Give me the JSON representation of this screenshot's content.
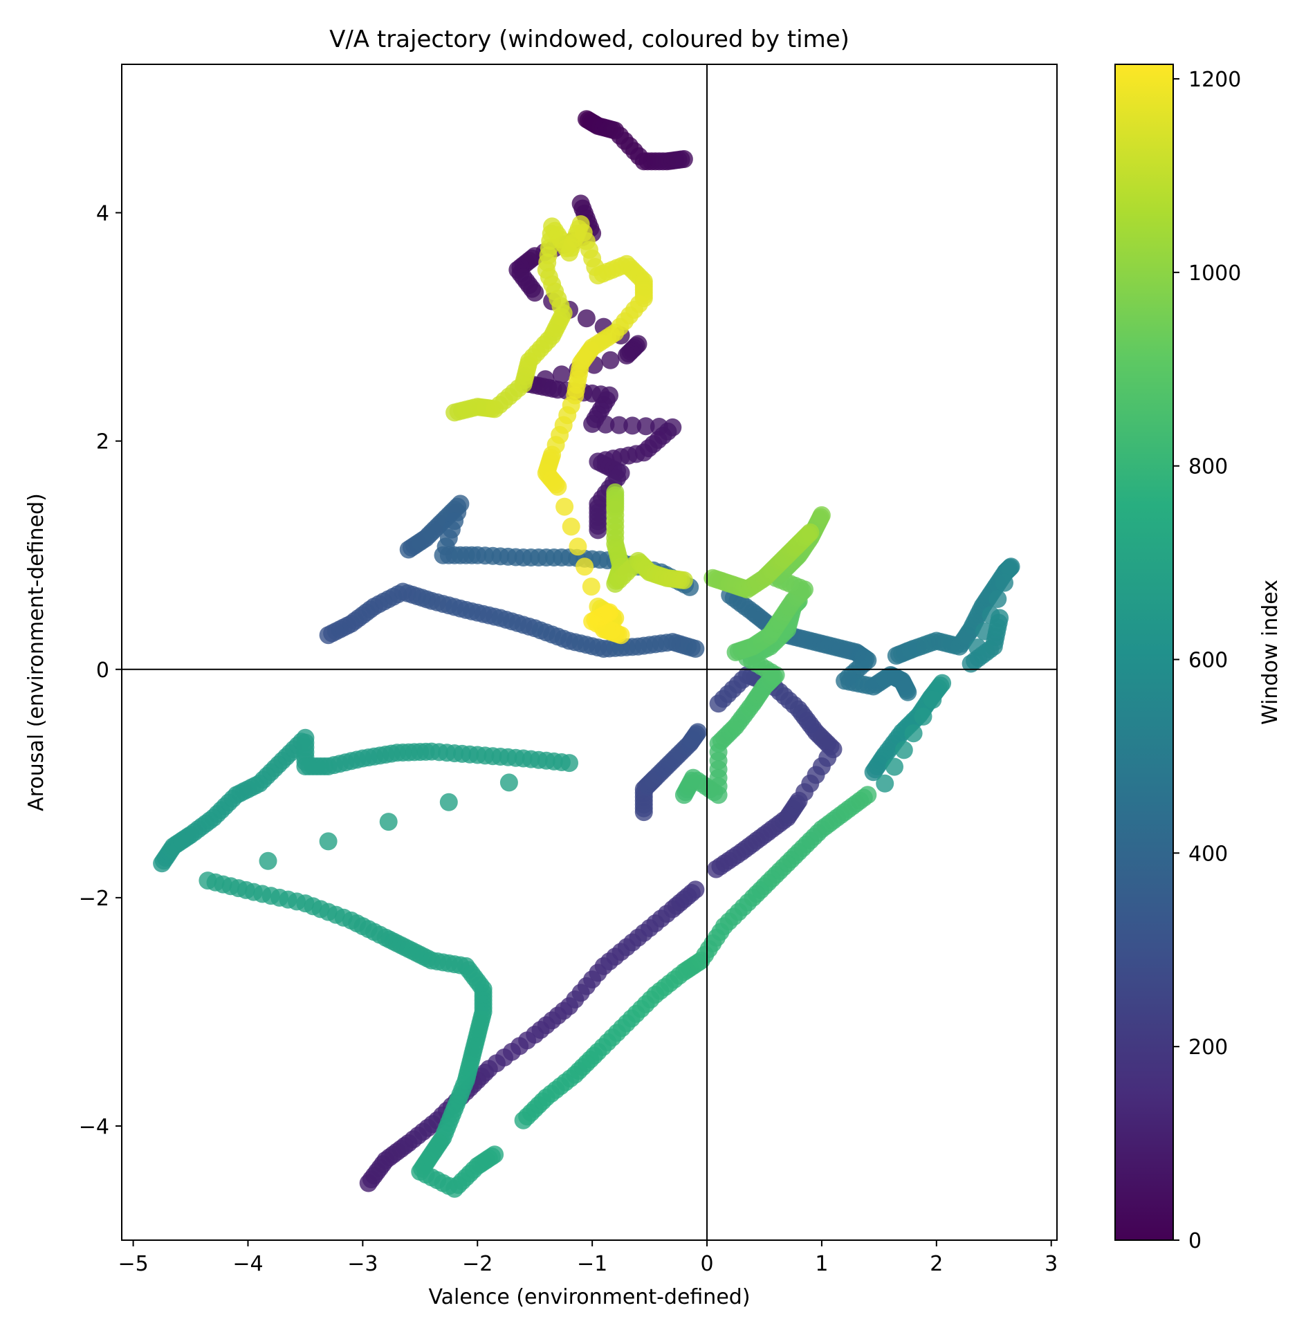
{
  "chart_data": {
    "type": "scatter",
    "title": "V/A trajectory (windowed, coloured by time)",
    "xlabel": "Valence (environment-defined)",
    "ylabel": "Arousal (environment-defined)",
    "xlim": [
      -5.1,
      3.05
    ],
    "ylim": [
      -5.0,
      5.3
    ],
    "xticks": [
      -5,
      -4,
      -3,
      -2,
      -1,
      0,
      1,
      2,
      3
    ],
    "xtick_labels": [
      "−5",
      "−4",
      "−3",
      "−2",
      "−1",
      "0",
      "1",
      "2",
      "3"
    ],
    "yticks": [
      -4,
      -2,
      0,
      2,
      4
    ],
    "ytick_labels": [
      "−4",
      "−2",
      "0",
      "2",
      "4"
    ],
    "reference_lines": {
      "x": 0,
      "y": 0
    },
    "grid": false,
    "colormap": "viridis",
    "marker_alpha": 0.8,
    "colorbar": {
      "label": "Window index",
      "range": [
        0,
        1215
      ],
      "ticks": [
        0,
        200,
        400,
        600,
        800,
        1000,
        1200
      ],
      "tick_labels": [
        "0",
        "200",
        "400",
        "600",
        "800",
        "1000",
        "1200"
      ]
    },
    "segments": [
      {
        "t": [
          0,
          40
        ],
        "pts": [
          [
            -1.05,
            4.82
          ],
          [
            -0.95,
            4.76
          ],
          [
            -0.8,
            4.72
          ],
          [
            -0.55,
            4.45
          ],
          [
            -0.35,
            4.45
          ],
          [
            -0.2,
            4.47
          ]
        ]
      },
      {
        "t": [
          40,
          90
        ],
        "pts": [
          [
            -1.1,
            4.08
          ],
          [
            -1.0,
            3.82
          ],
          [
            -1.5,
            3.62
          ],
          [
            -1.65,
            3.5
          ],
          [
            -1.5,
            3.3
          ],
          [
            -0.6,
            2.85
          ],
          [
            -0.7,
            2.75
          ],
          [
            -1.55,
            2.5
          ],
          [
            -1.3,
            2.45
          ],
          [
            -0.85,
            2.4
          ],
          [
            -1.0,
            2.15
          ],
          [
            -0.3,
            2.12
          ],
          [
            -0.55,
            1.9
          ],
          [
            -0.95,
            1.82
          ],
          [
            -0.75,
            1.72
          ],
          [
            -0.95,
            1.45
          ],
          [
            -0.95,
            1.22
          ]
        ]
      },
      {
        "t": [
          100,
          190
        ],
        "pts": [
          [
            -2.95,
            -4.5
          ],
          [
            -2.8,
            -4.3
          ],
          [
            -2.6,
            -4.15
          ],
          [
            -2.35,
            -3.95
          ],
          [
            -2.1,
            -3.7
          ],
          [
            -1.9,
            -3.5
          ],
          [
            -1.5,
            -3.2
          ],
          [
            -1.2,
            -2.95
          ],
          [
            -0.9,
            -2.6
          ],
          [
            -0.6,
            -2.35
          ],
          [
            -0.3,
            -2.1
          ],
          [
            -0.1,
            -1.93
          ]
        ]
      },
      {
        "t": [
          190,
          260
        ],
        "pts": [
          [
            0.08,
            -1.75
          ],
          [
            0.3,
            -1.6
          ],
          [
            0.5,
            -1.45
          ],
          [
            0.7,
            -1.3
          ],
          [
            0.8,
            -1.15
          ],
          [
            1.1,
            -0.7
          ],
          [
            0.95,
            -0.55
          ],
          [
            0.8,
            -0.35
          ],
          [
            0.55,
            -0.12
          ],
          [
            0.35,
            -0.05
          ],
          [
            0.1,
            -0.3
          ]
        ]
      },
      {
        "t": [
          260,
          310
        ],
        "pts": [
          [
            -0.55,
            -1.25
          ],
          [
            -0.55,
            -1.05
          ],
          [
            -0.45,
            -0.95
          ],
          [
            -0.3,
            -0.8
          ],
          [
            -0.15,
            -0.65
          ],
          [
            -0.08,
            -0.55
          ]
        ]
      },
      {
        "t": [
          310,
          360
        ],
        "pts": [
          [
            -3.3,
            0.3
          ],
          [
            -3.1,
            0.4
          ],
          [
            -2.9,
            0.55
          ],
          [
            -2.65,
            0.68
          ],
          [
            -2.4,
            0.6
          ],
          [
            -2.1,
            0.52
          ],
          [
            -1.8,
            0.45
          ],
          [
            -1.5,
            0.36
          ],
          [
            -1.2,
            0.25
          ],
          [
            -0.9,
            0.18
          ],
          [
            -0.6,
            0.2
          ],
          [
            -0.3,
            0.24
          ],
          [
            -0.1,
            0.18
          ]
        ]
      },
      {
        "t": [
          360,
          420
        ],
        "pts": [
          [
            -2.6,
            1.05
          ],
          [
            -2.45,
            1.15
          ],
          [
            -2.3,
            1.3
          ],
          [
            -2.15,
            1.45
          ],
          [
            -2.3,
            1.0
          ],
          [
            -2.0,
            1.0
          ],
          [
            -1.6,
            0.98
          ],
          [
            -1.2,
            0.98
          ],
          [
            -0.8,
            0.95
          ],
          [
            -0.4,
            0.85
          ],
          [
            -0.15,
            0.72
          ]
        ]
      },
      {
        "t": [
          420,
          480
        ],
        "pts": [
          [
            0.2,
            0.65
          ],
          [
            0.4,
            0.5
          ],
          [
            0.55,
            0.38
          ],
          [
            0.7,
            0.3
          ],
          [
            0.9,
            0.25
          ],
          [
            1.1,
            0.2
          ],
          [
            1.3,
            0.15
          ],
          [
            1.4,
            0.08
          ],
          [
            1.2,
            -0.1
          ],
          [
            1.45,
            -0.15
          ],
          [
            1.6,
            -0.05
          ],
          [
            1.7,
            -0.1
          ],
          [
            1.75,
            -0.2
          ]
        ]
      },
      {
        "t": [
          480,
          580
        ],
        "pts": [
          [
            1.65,
            0.12
          ],
          [
            1.8,
            0.18
          ],
          [
            2.0,
            0.25
          ],
          [
            2.2,
            0.2
          ],
          [
            2.3,
            0.35
          ],
          [
            2.4,
            0.55
          ],
          [
            2.5,
            0.7
          ],
          [
            2.6,
            0.85
          ],
          [
            2.65,
            0.9
          ],
          [
            2.3,
            0.05
          ],
          [
            2.5,
            0.2
          ],
          [
            2.55,
            0.45
          ]
        ]
      },
      {
        "t": [
          580,
          650
        ],
        "pts": [
          [
            1.45,
            -0.9
          ],
          [
            1.55,
            -0.75
          ],
          [
            1.7,
            -0.55
          ],
          [
            1.85,
            -0.4
          ],
          [
            1.95,
            -0.25
          ],
          [
            2.05,
            -0.12
          ],
          [
            1.55,
            -1.0
          ]
        ]
      },
      {
        "t": [
          650,
          740
        ],
        "pts": [
          [
            -4.75,
            -1.7
          ],
          [
            -4.65,
            -1.55
          ],
          [
            -4.5,
            -1.45
          ],
          [
            -4.3,
            -1.3
          ],
          [
            -4.1,
            -1.1
          ],
          [
            -3.9,
            -1.0
          ],
          [
            -3.7,
            -0.8
          ],
          [
            -3.5,
            -0.6
          ],
          [
            -3.5,
            -0.85
          ],
          [
            -3.3,
            -0.85
          ],
          [
            -3.0,
            -0.78
          ],
          [
            -2.7,
            -0.73
          ],
          [
            -2.4,
            -0.72
          ],
          [
            -2.0,
            -0.75
          ],
          [
            -1.6,
            -0.78
          ],
          [
            -1.2,
            -0.82
          ],
          [
            -4.35,
            -1.85
          ],
          [
            -3.95,
            -1.95
          ],
          [
            -3.5,
            -2.05
          ],
          [
            -3.1,
            -2.2
          ],
          [
            -2.8,
            -2.35
          ],
          [
            -2.6,
            -2.45
          ],
          [
            -2.4,
            -2.55
          ],
          [
            -2.1,
            -2.6
          ],
          [
            -1.95,
            -2.8
          ],
          [
            -1.95,
            -3.0
          ],
          [
            -2.0,
            -3.2
          ],
          [
            -2.05,
            -3.4
          ],
          [
            -2.1,
            -3.6
          ],
          [
            -2.2,
            -3.85
          ],
          [
            -2.3,
            -4.1
          ],
          [
            -2.4,
            -4.25
          ],
          [
            -2.5,
            -4.4
          ],
          [
            -2.2,
            -4.55
          ],
          [
            -2.0,
            -4.35
          ],
          [
            -1.85,
            -4.25
          ]
        ]
      },
      {
        "t": [
          740,
          830
        ],
        "pts": [
          [
            -1.6,
            -3.95
          ],
          [
            -1.4,
            -3.75
          ],
          [
            -1.15,
            -3.55
          ],
          [
            -0.95,
            -3.35
          ],
          [
            -0.7,
            -3.1
          ],
          [
            -0.45,
            -2.85
          ],
          [
            -0.2,
            -2.65
          ],
          [
            -0.05,
            -2.55
          ],
          [
            0.15,
            -2.25
          ],
          [
            0.4,
            -2.0
          ],
          [
            0.6,
            -1.8
          ],
          [
            0.8,
            -1.6
          ],
          [
            1.0,
            -1.4
          ],
          [
            1.2,
            -1.25
          ],
          [
            1.4,
            -1.1
          ]
        ]
      },
      {
        "t": [
          830,
          900
        ],
        "pts": [
          [
            -0.2,
            -1.1
          ],
          [
            -0.12,
            -0.95
          ],
          [
            0.1,
            -1.1
          ],
          [
            0.1,
            -0.65
          ],
          [
            0.25,
            -0.5
          ],
          [
            0.4,
            -0.3
          ],
          [
            0.5,
            -0.15
          ],
          [
            0.6,
            -0.05
          ],
          [
            0.35,
            0.1
          ],
          [
            0.55,
            0.2
          ],
          [
            0.7,
            0.35
          ],
          [
            0.75,
            0.55
          ],
          [
            0.8,
            0.6
          ]
        ]
      },
      {
        "t": [
          900,
          980
        ],
        "pts": [
          [
            0.25,
            0.15
          ],
          [
            0.4,
            0.2
          ],
          [
            0.55,
            0.3
          ],
          [
            0.65,
            0.45
          ],
          [
            0.75,
            0.6
          ],
          [
            0.85,
            0.7
          ],
          [
            0.6,
            0.8
          ],
          [
            0.7,
            0.9
          ],
          [
            0.8,
            1.0
          ],
          [
            0.9,
            1.15
          ],
          [
            0.95,
            1.25
          ],
          [
            1.0,
            1.35
          ]
        ]
      },
      {
        "t": [
          980,
          1040
        ],
        "pts": [
          [
            0.05,
            0.8
          ],
          [
            0.2,
            0.75
          ],
          [
            0.35,
            0.7
          ],
          [
            0.5,
            0.8
          ],
          [
            0.6,
            0.9
          ],
          [
            0.7,
            1.0
          ],
          [
            0.8,
            1.1
          ],
          [
            0.9,
            1.2
          ]
        ]
      },
      {
        "t": [
          1040,
          1110
        ],
        "pts": [
          [
            -0.8,
            1.55
          ],
          [
            -0.8,
            1.4
          ],
          [
            -0.8,
            1.1
          ],
          [
            -0.75,
            0.9
          ],
          [
            -0.8,
            0.75
          ],
          [
            -0.6,
            0.95
          ],
          [
            -0.5,
            0.85
          ],
          [
            -0.35,
            0.8
          ],
          [
            -0.2,
            0.78
          ]
        ]
      },
      {
        "t": [
          1110,
          1215
        ],
        "pts": [
          [
            -2.2,
            2.25
          ],
          [
            -2.0,
            2.3
          ],
          [
            -1.85,
            2.28
          ],
          [
            -1.6,
            2.5
          ],
          [
            -1.55,
            2.7
          ],
          [
            -1.35,
            2.92
          ],
          [
            -1.25,
            3.12
          ],
          [
            -1.4,
            3.5
          ],
          [
            -1.35,
            3.88
          ],
          [
            -1.2,
            3.65
          ],
          [
            -1.1,
            3.9
          ],
          [
            -0.95,
            3.45
          ],
          [
            -0.7,
            3.55
          ],
          [
            -0.55,
            3.4
          ],
          [
            -0.55,
            3.25
          ],
          [
            -0.8,
            2.95
          ],
          [
            -1.0,
            2.82
          ],
          [
            -1.1,
            2.68
          ],
          [
            -1.15,
            2.4
          ],
          [
            -1.35,
            1.88
          ],
          [
            -1.4,
            1.72
          ],
          [
            -1.3,
            1.6
          ],
          [
            -0.95,
            0.55
          ],
          [
            -0.8,
            0.45
          ],
          [
            -0.9,
            0.35
          ],
          [
            -0.75,
            0.3
          ],
          [
            -1.0,
            0.42
          ],
          [
            -0.85,
            0.5
          ]
        ]
      }
    ]
  }
}
